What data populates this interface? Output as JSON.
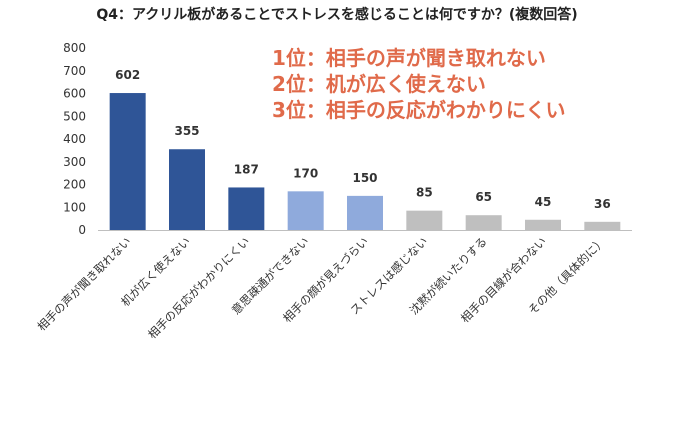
{
  "chart_data": {
    "type": "bar",
    "title": "Q4：アクリル板があることでストレスを感じることは何ですか？(複数回答)",
    "categories": [
      "相手の声が聞き取れない",
      "机が広く使えない",
      "相手の反応がわかりにくい",
      "意思疎通ができない",
      "相手の顔が見えづらい",
      "ストレスは感じない",
      "沈黙が続いたりする",
      "相手の目線が合わない",
      "その他（具体的に）"
    ],
    "values": [
      602,
      355,
      187,
      170,
      150,
      85,
      65,
      45,
      36
    ],
    "ylim": [
      0,
      800
    ],
    "yticks": [
      0,
      100,
      200,
      300,
      400,
      500,
      600,
      700,
      800
    ],
    "grid": false,
    "legend": "none",
    "bar_colors": [
      "#2f5597",
      "#2f5597",
      "#2f5597",
      "#8faadc",
      "#8faadc",
      "#bfbfbf",
      "#bfbfbf",
      "#bfbfbf",
      "#bfbfbf"
    ],
    "annotations": [
      "1位：相手の声が聞き取れない",
      "2位：机が広く使えない",
      "3位：相手の反応がわかりにくい"
    ]
  }
}
